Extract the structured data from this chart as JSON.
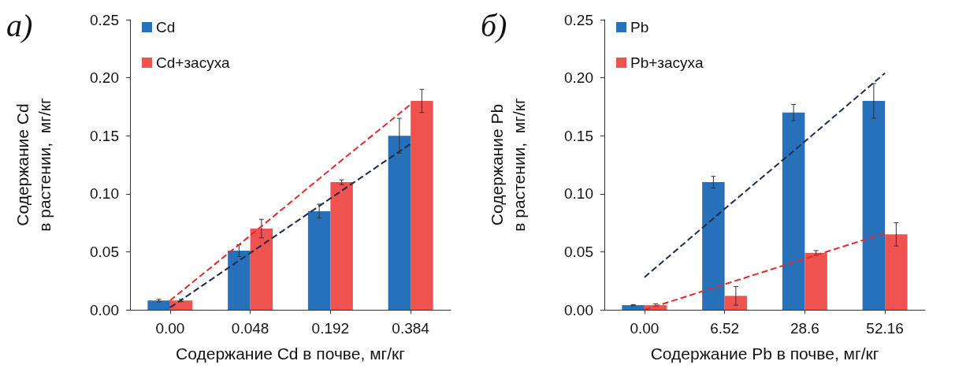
{
  "chart_data": [
    {
      "type": "bar",
      "annotations": [
        "а)"
      ],
      "xlabel": "Содержание Cd в почве, мг/кг",
      "ylabel": "Содержание Cd\nв растении,  мг/кг",
      "categories": [
        "0.00",
        "0.048",
        "0.192",
        "0.384"
      ],
      "ylim": [
        0,
        0.25
      ],
      "yticks": [
        {
          "value": 0,
          "label": "0.00"
        },
        {
          "value": 0.05,
          "label": "0.05"
        },
        {
          "value": 0.1,
          "label": "0.10"
        },
        {
          "value": 0.15,
          "label": "0.15"
        },
        {
          "value": 0.2,
          "label": "0.20"
        },
        {
          "value": 0.25,
          "label": "0.25"
        }
      ],
      "grid": false,
      "legend": "top left",
      "series": [
        {
          "name": "Cd",
          "color": "#2671b9",
          "values": [
            0.008,
            0.051,
            0.085,
            0.15
          ],
          "errors": [
            0.001,
            0.005,
            0.006,
            0.015
          ]
        },
        {
          "name": "Cd+засуха",
          "color": "#ef5350",
          "values": [
            0.008,
            0.07,
            0.11,
            0.18
          ],
          "errors": [
            0.001,
            0.008,
            0.002,
            0.01
          ]
        },
        {
          "type": "line",
          "color": "#1f2d4a",
          "line_style": "dashed",
          "values": [
            0.002,
            0.049,
            0.096,
            0.143
          ]
        },
        {
          "type": "line",
          "color": "#e8282b",
          "line_style": "dashed",
          "values": [
            0.008,
            0.064,
            0.121,
            0.177
          ]
        }
      ]
    },
    {
      "type": "bar",
      "annotations": [
        "б)"
      ],
      "xlabel": "Содержание Pb в почве, мг/кг",
      "ylabel": "Содержание Pb\nв растении,  мг/кг",
      "categories": [
        "0.00",
        "6.52",
        "28.6",
        "52.16"
      ],
      "ylim": [
        0,
        0.25
      ],
      "yticks": [
        {
          "value": 0,
          "label": "0.00"
        },
        {
          "value": 0.05,
          "label": "0.05"
        },
        {
          "value": 0.1,
          "label": "0.10"
        },
        {
          "value": 0.15,
          "label": "0.15"
        },
        {
          "value": 0.2,
          "label": "0.20"
        },
        {
          "value": 0.25,
          "label": "0.25"
        }
      ],
      "grid": false,
      "legend": "top left",
      "series": [
        {
          "name": "Pb",
          "color": "#2671b9",
          "values": [
            0.004,
            0.11,
            0.17,
            0.18
          ],
          "errors": [
            0.0005,
            0.005,
            0.007,
            0.015
          ]
        },
        {
          "name": "Pb+засуха",
          "color": "#ef5350",
          "values": [
            0.004,
            0.012,
            0.049,
            0.065
          ],
          "errors": [
            0.001,
            0.008,
            0.002,
            0.01
          ]
        },
        {
          "type": "line",
          "color": "#1f2d4a",
          "line_style": "dashed",
          "values": [
            0.028,
            0.087,
            0.145,
            0.204
          ]
        },
        {
          "type": "line",
          "color": "#e8282b",
          "line_style": "dashed",
          "values": [
            0,
            0.022,
            0.044,
            0.066
          ]
        }
      ]
    }
  ]
}
